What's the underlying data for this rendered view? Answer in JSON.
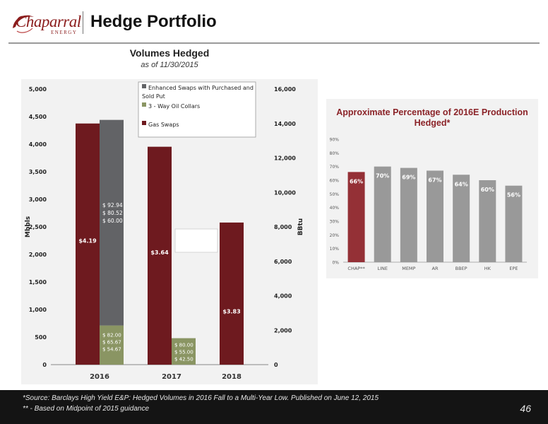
{
  "header": {
    "logo_text": "Chaparral",
    "logo_subtext": "ENERGY",
    "title": "Hedge Portfolio"
  },
  "colors": {
    "gas_swaps": "#6e1a1f",
    "collars": "#8a9563",
    "enhanced_swaps": "#626366",
    "chap_bar": "#943036",
    "peer_bar": "#999999",
    "brand": "#8b1c1c"
  },
  "chart_data": [
    {
      "type": "bar",
      "title": "Volumes Hedged",
      "subtitle": "as of 11/30/2015",
      "categories": [
        "2016",
        "2017",
        "2018"
      ],
      "ylabel": "Mbbls",
      "y2label": "BBtu",
      "ylim": [
        0,
        5000
      ],
      "y2lim": [
        0,
        16000
      ],
      "yticks": [
        "0",
        "500",
        "1,000",
        "1,500",
        "2,000",
        "2,500",
        "3,000",
        "3,500",
        "4,000",
        "4,500",
        "5,000"
      ],
      "y2ticks": [
        "0",
        "2,000",
        "4,000",
        "6,000",
        "8,000",
        "10,000",
        "12,000",
        "14,000",
        "16,000"
      ],
      "legend": [
        "Enhanced Swaps with Purchased and Sold Put",
        "3 - Way Oil Collars",
        "Gas Swaps"
      ],
      "legend_position": "top",
      "series": [
        {
          "name": "Gas Swaps",
          "axis": "right",
          "values": [
            14000,
            12650,
            8250
          ],
          "labels": [
            "$4.19",
            "$3.64",
            "$3.83"
          ]
        },
        {
          "name": "3 - Way Oil Collars",
          "axis": "left",
          "values": [
            710,
            480,
            null
          ],
          "labels": [
            [
              "$ 82.00",
              "$ 65.67",
              "$ 54.67"
            ],
            [
              "$ 80.00",
              "$ 55.00",
              "$ 42.50"
            ],
            null
          ]
        },
        {
          "name": "Enhanced Swaps with Purchased and Sold Put",
          "axis": "left",
          "values": [
            3730,
            null,
            null
          ],
          "labels": [
            [
              "$ 92.94",
              "$ 80.52",
              "$ 60.00"
            ],
            null,
            null
          ]
        }
      ]
    },
    {
      "type": "bar",
      "title": "Approximate Percentage of 2016E Production Hedged*",
      "categories": [
        "CHAP**",
        "LINE",
        "MEMP",
        "AR",
        "BBEP",
        "HK",
        "EPE"
      ],
      "values": [
        66,
        70,
        69,
        67,
        64,
        60,
        56
      ],
      "value_labels": [
        "66%",
        "70%",
        "69%",
        "67%",
        "64%",
        "60%",
        "56%"
      ],
      "ylim": [
        0,
        90
      ],
      "yticks": [
        "0%",
        "10%",
        "20%",
        "30%",
        "40%",
        "50%",
        "60%",
        "70%",
        "80%",
        "90%"
      ]
    }
  ],
  "footer": {
    "source": "*Source: Barclays High Yield E&P: Hedged Volumes in 2016 Fall to a Multi-Year Low.  Published on June 12, 2015",
    "note": "** - Based on Midpoint of 2015 guidance",
    "page_number": "46"
  }
}
